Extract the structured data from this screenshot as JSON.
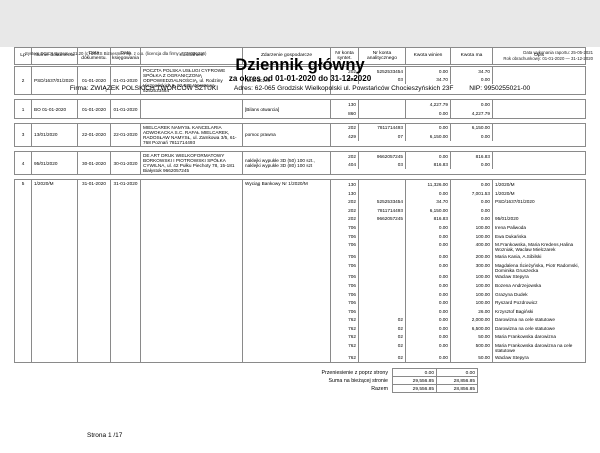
{
  "meta": {
    "system_line": "System DGCS System v.21.20  (c) dGCS Biznesmen Sp. z o.o. (licencja dla firmy: 7773056226)",
    "report_date_line": "Data wykonania raportu:  25-05-2021",
    "fiscal_year_line": "Rok obrachunkowy: 01-01-2020 — 31-12-2020"
  },
  "header": {
    "title": "Dziennik główny",
    "subtitle": "za okres od 01-01-2020 do 31-12-2020",
    "company": "Firma: ZWIĄZEK POLSKICH TWÓRCÓW SZTUKI",
    "address": "Adres: 62-065 Grodzisk Wielkopolski  ul. Powstańców Chocieszyńskich 23F",
    "nip": "NIP: 9950255021-00"
  },
  "table": {
    "columns": [
      "Lp",
      "Numer dokumentu",
      "Data dokumentu.",
      "Data księgowania",
      "Kontrahent",
      "Zdarzenie gospodarcze",
      "Nr konta syntet.",
      "Nr konta analitycznego",
      "Kwota winien",
      "Kwota ma",
      "Opis"
    ],
    "entries": [
      {
        "lp": "2",
        "numer": "PSD/1637/01/2020",
        "data_dokumentu": "01-01-2020",
        "data_ksiegowania": "01-01-2020",
        "kontrahent": "POCZTA POLSKA USŁUGI CYFROWE SPÓŁKA Z OGRANICZONĄ ODPOWIEDZIALNOŚCIĄ, ul. Rodziny Hiszpańskich 8, 02-685 Warszawa 5252533464",
        "zdarzenie": "neoznaczek",
        "lines": [
          {
            "syntet": "202",
            "analit": "5252533454",
            "winien": "0.00",
            "ma": "34.70",
            "opis": ""
          },
          {
            "syntet": "429",
            "analit": "03",
            "winien": "34.70",
            "ma": "0.00",
            "opis": ""
          }
        ]
      },
      {
        "lp": "1",
        "numer": "BO 01-01-2020",
        "data_dokumentu": "01-01-2020",
        "data_ksiegowania": "01-01-2020",
        "kontrahent": "",
        "zdarzenie": "[Bilans otwarcia]",
        "lines": [
          {
            "syntet": "130",
            "analit": "",
            "winien": "4,227.79",
            "ma": "0.00",
            "opis": ""
          },
          {
            "syntet": "860",
            "analit": "",
            "winien": "0.00",
            "ma": "4,227.79",
            "opis": ""
          }
        ]
      },
      {
        "lp": "3",
        "numer": "13/01/2020",
        "data_dokumentu": "22-01-2020",
        "data_ksiegowania": "22-01-2020",
        "kontrahent": "MIELCAREK NAMYSŁ KANCELARIA ADWOKACKA S.C.  RAFAŁ MIELCAREK, RADOSŁAW NAMYSŁ, ul. Zamkowa 3/5, 61-768 Poznań 7811714493",
        "zdarzenie": "pomoc prawna",
        "lines": [
          {
            "syntet": "202",
            "analit": "7811714493",
            "winien": "0.00",
            "ma": "6,150.00",
            "opis": ""
          },
          {
            "syntet": "429",
            "analit": "07",
            "winien": "6,150.00",
            "ma": "0.00",
            "opis": ""
          }
        ]
      },
      {
        "lp": "4",
        "numer": "95/01/2020",
        "data_dokumentu": "30-01-2020",
        "data_ksiegowania": "30-01-2020",
        "kontrahent": "DE ART DRUK WIELKOFORMATOWY BORKOWSKI I PIOTROWSKI SPÓŁKA CYWILNA, ul. 42 Pułku Piechoty 78, 15-181 Białystok 9662057245",
        "zdarzenie": "naklejki wypukłe 3D (50) 100 szt., naklejki wypukłe 3D (80) 100 szt",
        "lines": [
          {
            "syntet": "202",
            "analit": "9662057245",
            "winien": "0.00",
            "ma": "816.83",
            "opis": ""
          },
          {
            "syntet": "404",
            "analit": "03",
            "winien": "816.83",
            "ma": "0.00",
            "opis": ""
          }
        ]
      },
      {
        "lp": "5",
        "numer": "1/2020/M",
        "data_dokumentu": "31-01-2020",
        "data_ksiegowania": "31-01-2020",
        "kontrahent": "",
        "zdarzenie": "Wyciąg Bankowy Nr 1/2020/M",
        "lines": [
          {
            "syntet": "130",
            "analit": "",
            "winien": "11,326.00",
            "ma": "0.00",
            "opis": "1/2020/M"
          },
          {
            "syntet": "130",
            "analit": "",
            "winien": "0.00",
            "ma": "7,001.53",
            "opis": "1/2020/M"
          },
          {
            "syntet": "202",
            "analit": "5252533454",
            "winien": "34.70",
            "ma": "0.00",
            "opis": "PSD/1637/01/2020"
          },
          {
            "syntet": "202",
            "analit": "7811714493",
            "winien": "6,150.00",
            "ma": "0.00",
            "opis": ""
          },
          {
            "syntet": "202",
            "analit": "9662057245",
            "winien": "816.83",
            "ma": "0.00",
            "opis": "95/01/2020"
          },
          {
            "syntet": "706",
            "analit": "",
            "winien": "0.00",
            "ma": "100.00",
            "opis": "Irena Paliwoda"
          },
          {
            "syntet": "706",
            "analit": "",
            "winien": "0.00",
            "ma": "100.00",
            "opis": "Ewa Dukańska"
          },
          {
            "syntet": "706",
            "analit": "",
            "winien": "0.00",
            "ma": "400.00",
            "opis": "M.Frankowska, Maria Kredens,Halina Wozniak, Waclaw Mielczarek"
          },
          {
            "syntet": "706",
            "analit": "",
            "winien": "0.00",
            "ma": "200.00",
            "opis": "Maria Kania, A.Sibilski"
          },
          {
            "syntet": "706",
            "analit": "",
            "winien": "0.00",
            "ma": "300.00",
            "opis": "Magdalena Ścieżyńska, Piotr Radomski, Dominika Gruszecka"
          },
          {
            "syntet": "706",
            "analit": "",
            "winien": "0.00",
            "ma": "100.00",
            "opis": "Waclaw Stepyra"
          },
          {
            "syntet": "706",
            "analit": "",
            "winien": "0.00",
            "ma": "100.00",
            "opis": "Bozena Andrzejowska"
          },
          {
            "syntet": "706",
            "analit": "",
            "winien": "0.00",
            "ma": "100.00",
            "opis": "Grazyna Dudek"
          },
          {
            "syntet": "706",
            "analit": "",
            "winien": "0.00",
            "ma": "100.00",
            "opis": "Ryszard Pozdrowicz"
          },
          {
            "syntet": "706",
            "analit": "",
            "winien": "0.00",
            "ma": "26.00",
            "opis": "Krzysztof Bagiński"
          },
          {
            "syntet": "762",
            "analit": "02",
            "winien": "0.00",
            "ma": "2,000.00",
            "opis": "Darowizna na cele statutowe"
          },
          {
            "syntet": "762",
            "analit": "02",
            "winien": "0.00",
            "ma": "6,500.00",
            "opis": "Darowizna na cele statutowe"
          },
          {
            "syntet": "762",
            "analit": "02",
            "winien": "0.00",
            "ma": "50.00",
            "opis": "Maria Frankowska darowizna"
          },
          {
            "syntet": "762",
            "analit": "02",
            "winien": "0.00",
            "ma": "500.00",
            "opis": "Maria Frankowska darowizna na cele statutowe"
          },
          {
            "syntet": "762",
            "analit": "02",
            "winien": "0.00",
            "ma": "50.00",
            "opis": "Waclaw Stepyra"
          }
        ]
      }
    ]
  },
  "summary": {
    "rows": [
      {
        "label": "Przeniesienie z poprz strony",
        "winien": "0.00",
        "ma": "0.00"
      },
      {
        "label": "Suma na bieżącej stronie",
        "winien": "29,556.85",
        "ma": "28,856.85"
      },
      {
        "label": "Razem",
        "winien": "29,556.85",
        "ma": "28,856.85"
      }
    ]
  },
  "footer": {
    "page_label": "Strona 1 /17"
  }
}
